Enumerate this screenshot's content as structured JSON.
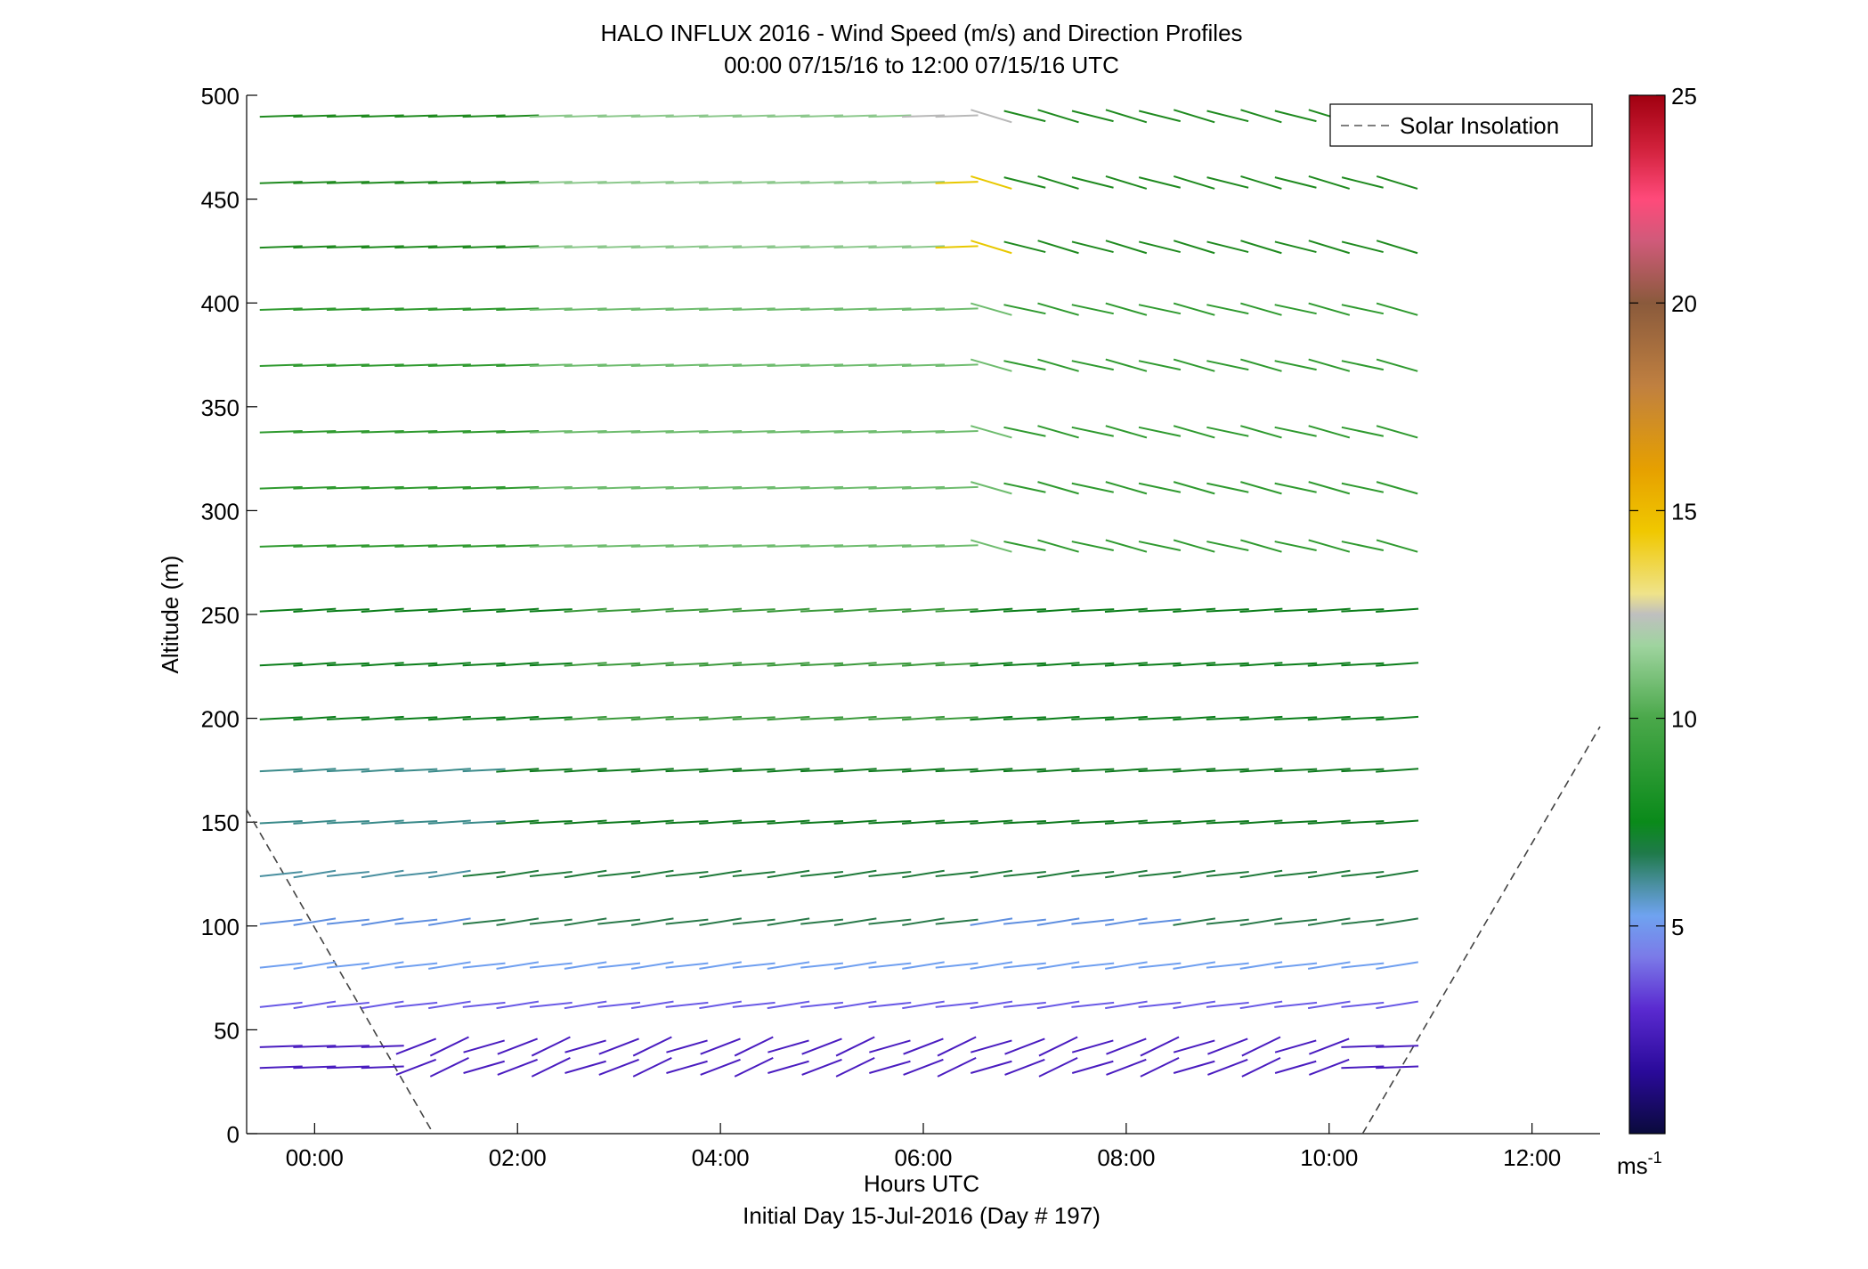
{
  "chart_data": {
    "type": "barbs",
    "title": "HALO INFLUX 2016 - Wind Speed (m/s) and Direction Profiles",
    "subtitle": "00:00 07/15/16 to 12:00 07/15/16  UTC",
    "xlabel": "Hours UTC",
    "xlabel2": "Initial Day 15-Jul-2016 (Day # 197)",
    "ylabel": "Altitude (m)",
    "xlim": [
      -0.67,
      12.67
    ],
    "ylim": [
      0,
      500
    ],
    "x_ticks": [
      0,
      2,
      4,
      6,
      8,
      10,
      12
    ],
    "x_tick_labels": [
      "00:00",
      "02:00",
      "04:00",
      "06:00",
      "08:00",
      "10:00",
      "12:00"
    ],
    "y_ticks": [
      0,
      50,
      100,
      150,
      200,
      250,
      300,
      350,
      400,
      450,
      500
    ],
    "y_tick_labels": [
      "0",
      "50",
      "100",
      "150",
      "200",
      "250",
      "300",
      "350",
      "400",
      "450",
      "500"
    ],
    "grid": false,
    "legend": {
      "placement": "top-right",
      "entries": [
        "Solar Insolation"
      ]
    },
    "colorbar": {
      "min": 0,
      "max": 25,
      "ticks": [
        5,
        10,
        15,
        20,
        25
      ],
      "tick_labels": [
        "5",
        "10",
        "15",
        "20",
        "25"
      ],
      "unit_base": "ms",
      "unit_exp": "-1"
    },
    "altitudes": [
      32,
      42,
      62,
      81,
      102,
      125,
      150,
      175,
      200,
      226,
      252,
      283,
      311,
      338,
      370,
      397,
      427,
      458,
      490
    ],
    "times": [
      -0.33,
      0,
      0.33,
      0.67,
      1,
      1.33,
      1.67,
      2,
      2.33,
      2.67,
      3,
      3.33,
      3.67,
      4,
      4.33,
      4.67,
      5,
      5.33,
      5.67,
      6,
      6.33,
      6.67,
      7,
      7.33,
      7.67,
      8,
      8.33,
      8.67,
      9,
      9.33,
      9.67,
      10,
      10.33,
      10.67
    ],
    "solar_insolation": [
      {
        "x": [
          -0.67,
          1.17
        ],
        "y": [
          156,
          0
        ]
      },
      {
        "x": [
          10.33,
          12.67
        ],
        "y": [
          0,
          196
        ]
      }
    ]
  }
}
